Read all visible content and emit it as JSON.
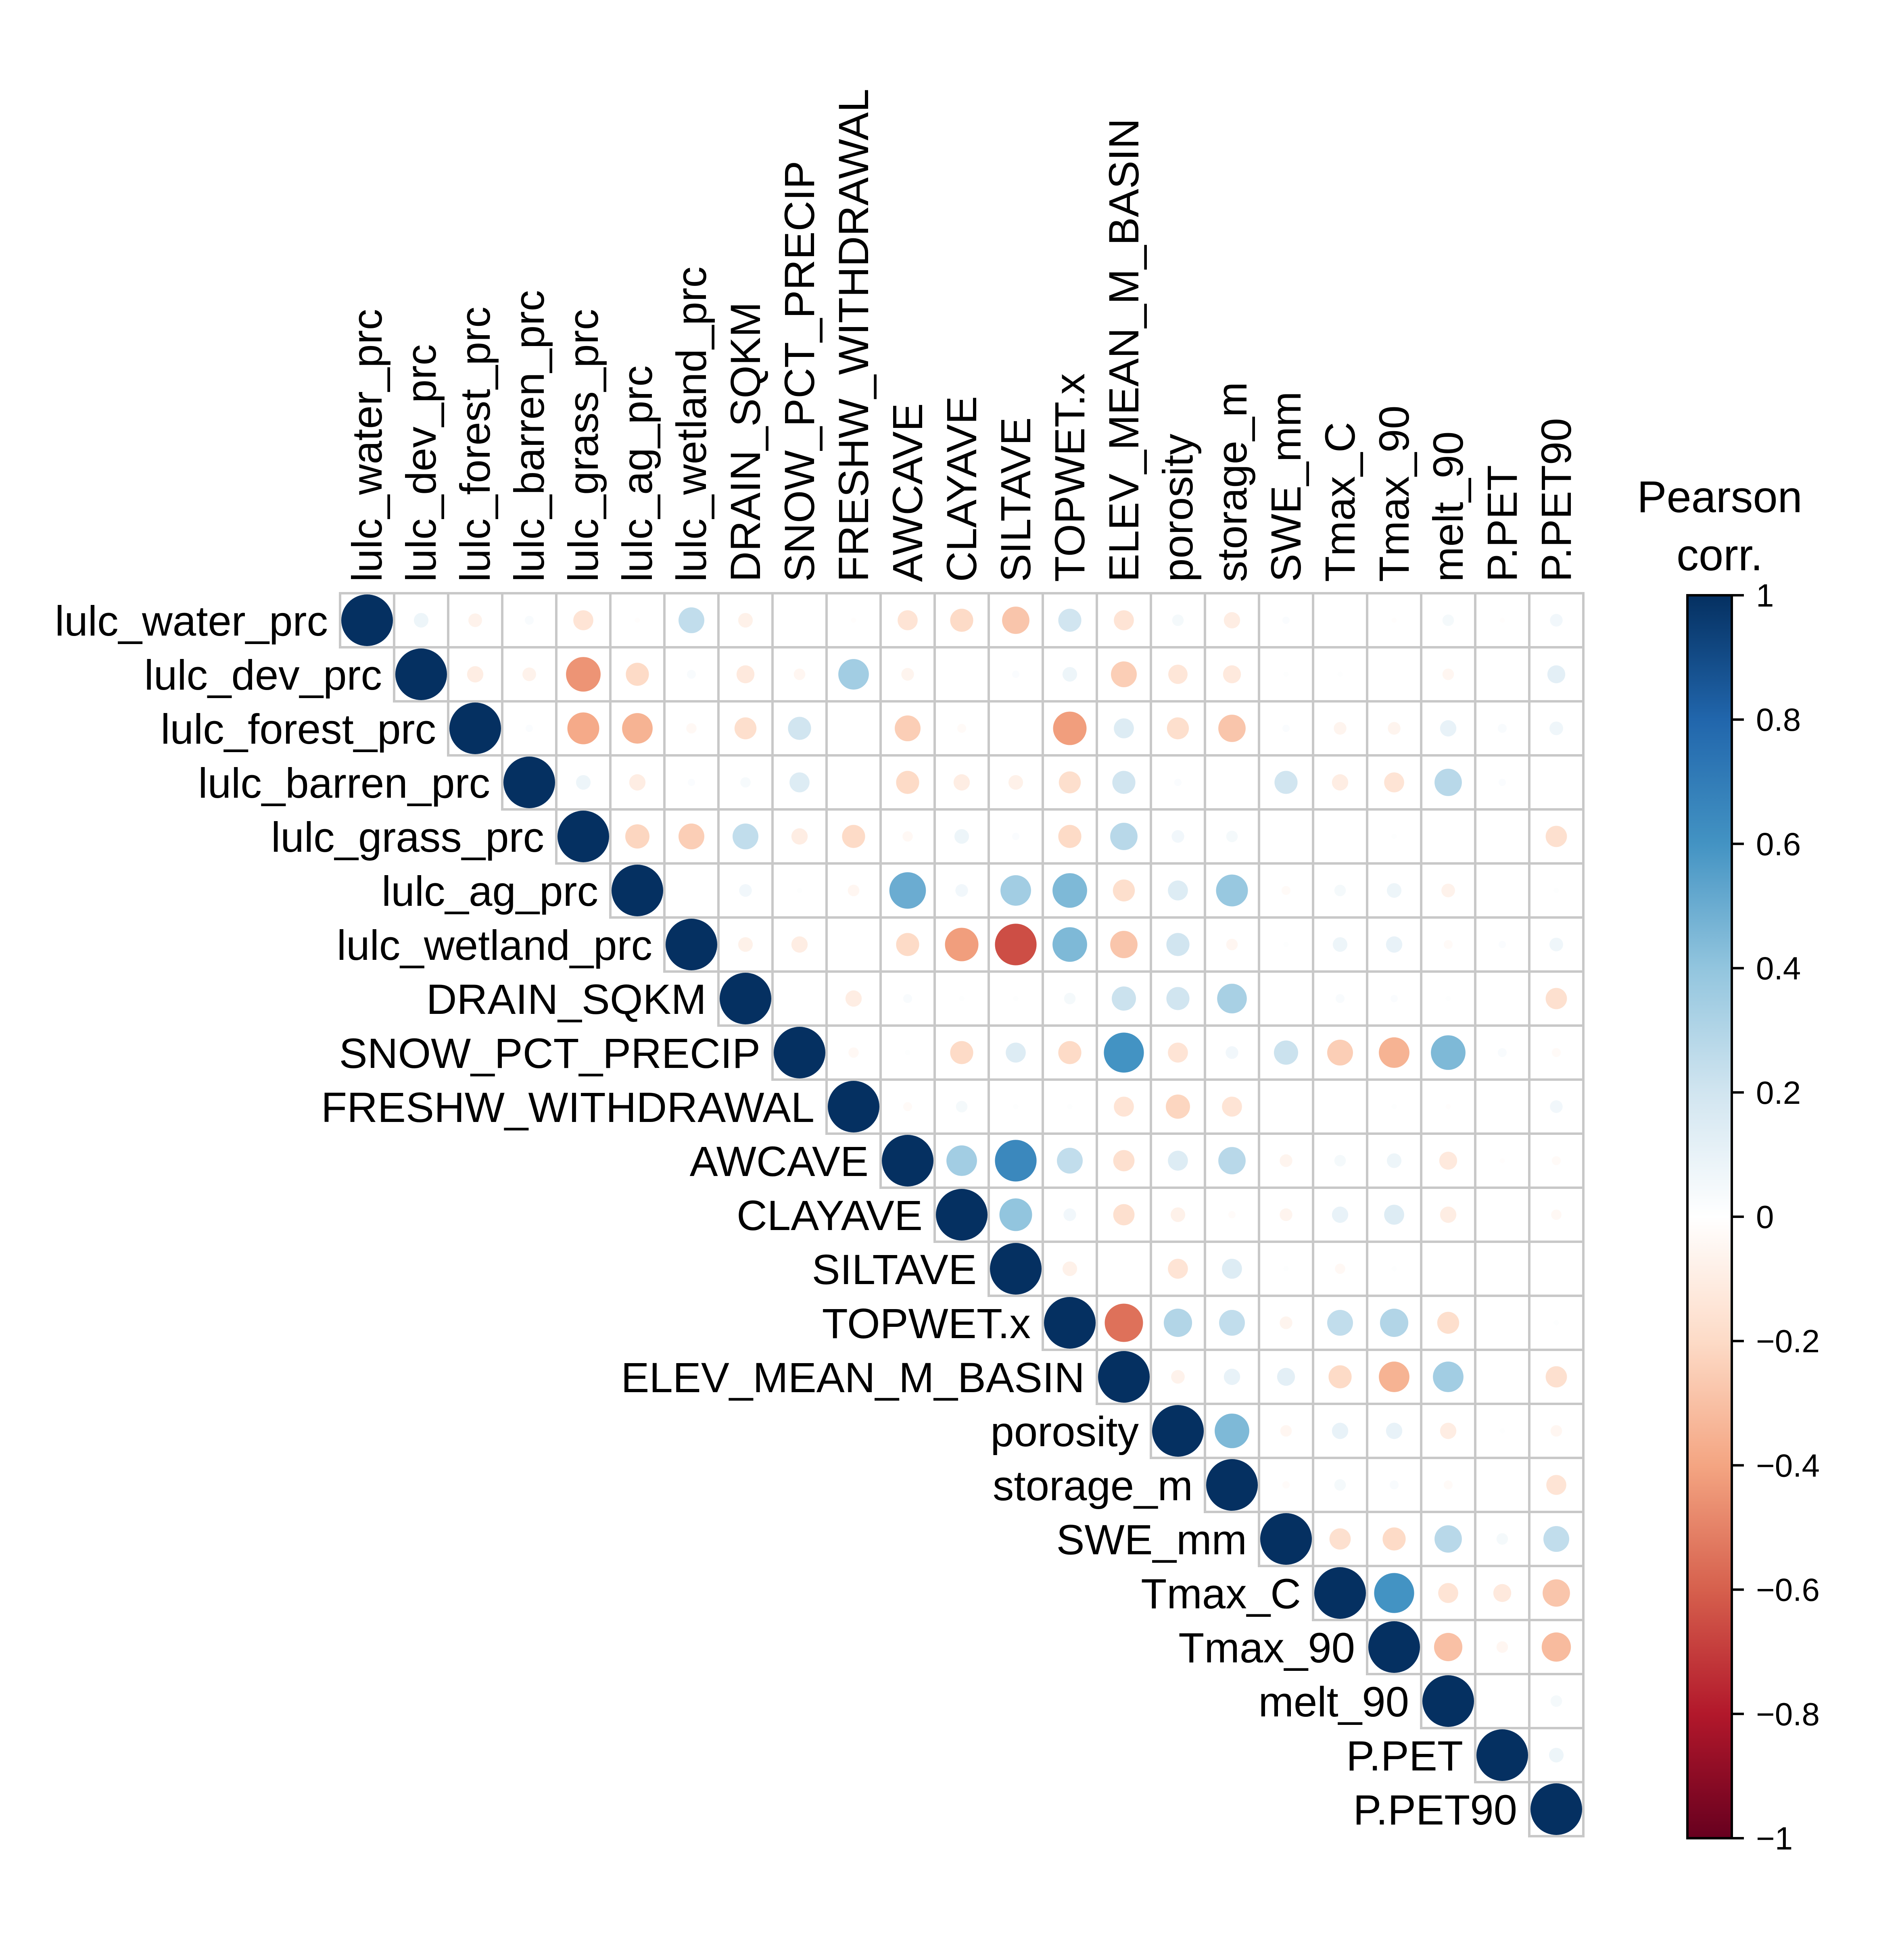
{
  "chart_data": {
    "type": "heatmap",
    "subtype": "correlation-circles-upper",
    "variables": [
      "lulc_water_prc",
      "lulc_dev_prc",
      "lulc_forest_prc",
      "lulc_barren_prc",
      "lulc_grass_prc",
      "lulc_ag_prc",
      "lulc_wetland_prc",
      "DRAIN_SQKM",
      "SNOW_PCT_PRECIP",
      "FRESHW_WITHDRAWAL",
      "AWCAVE",
      "CLAYAVE",
      "SILTAVE",
      "TOPWET.x",
      "ELEV_MEAN_M_BASIN",
      "porosity",
      "storage_m",
      "SWE_mm",
      "Tmax_C",
      "Tmax_90",
      "melt_90",
      "P.PET",
      "P.PET90"
    ],
    "matrix": [
      [
        1,
        0.08,
        -0.07,
        0.03,
        -0.15,
        -0.01,
        0.25,
        -0.08,
        0,
        -0.01,
        -0.15,
        -0.2,
        -0.28,
        0.2,
        -0.15,
        0.05,
        -0.1,
        0.02,
        0,
        -0.01,
        0.05,
        -0.01,
        0.06
      ],
      [
        null,
        1,
        -0.1,
        -0.07,
        -0.45,
        -0.2,
        0.03,
        -0.12,
        -0.05,
        0.35,
        -0.06,
        0,
        0.02,
        0.08,
        -0.25,
        -0.14,
        -0.12,
        0.01,
        0.01,
        0,
        -0.05,
        0,
        0.12
      ],
      [
        null,
        null,
        1,
        0.02,
        -0.38,
        -0.35,
        -0.04,
        -0.18,
        0.2,
        0,
        -0.25,
        -0.03,
        0,
        -0.42,
        0.15,
        -0.18,
        -0.28,
        0.02,
        -0.06,
        -0.06,
        0.1,
        0.03,
        0.07
      ],
      [
        null,
        null,
        null,
        1,
        0.08,
        -0.1,
        0.02,
        0.04,
        0.15,
        0,
        -0.2,
        -0.1,
        -0.08,
        -0.18,
        0.2,
        0.02,
        0,
        0.2,
        -0.1,
        -0.15,
        0.28,
        0.02,
        0
      ],
      [
        null,
        null,
        null,
        null,
        1,
        -0.22,
        -0.25,
        0.25,
        -0.1,
        -0.2,
        -0.04,
        0.08,
        0.02,
        -0.2,
        0.28,
        0.06,
        0.05,
        0,
        0,
        0.01,
        0,
        0,
        -0.17
      ],
      [
        null,
        null,
        null,
        null,
        null,
        1,
        0,
        0.06,
        0.01,
        -0.05,
        0.5,
        0.06,
        0.35,
        0.45,
        -0.18,
        0.15,
        0.38,
        -0.03,
        0.05,
        0.08,
        -0.07,
        0,
        0.01
      ],
      [
        null,
        null,
        null,
        null,
        null,
        null,
        1,
        -0.08,
        -0.1,
        0,
        -0.2,
        -0.42,
        -0.65,
        0.45,
        -0.28,
        0.2,
        -0.05,
        0.01,
        0.08,
        0.1,
        -0.03,
        0.02,
        0.07
      ],
      [
        null,
        null,
        null,
        null,
        null,
        null,
        null,
        1,
        0,
        -0.1,
        0.03,
        0.01,
        0.01,
        0.05,
        0.22,
        0.2,
        0.33,
        0,
        0.03,
        0.02,
        0.01,
        0,
        -0.17
      ],
      [
        null,
        null,
        null,
        null,
        null,
        null,
        null,
        null,
        1,
        -0.04,
        0.01,
        -0.2,
        0.15,
        -0.2,
        0.6,
        -0.15,
        0.06,
        0.22,
        -0.25,
        -0.35,
        0.45,
        0.03,
        -0.03
      ],
      [
        null,
        null,
        null,
        null,
        null,
        null,
        null,
        null,
        null,
        1,
        -0.03,
        0.05,
        0.01,
        0.01,
        -0.15,
        -0.22,
        -0.15,
        0,
        0,
        0.01,
        -0.01,
        0,
        0.06
      ],
      [
        null,
        null,
        null,
        null,
        null,
        null,
        null,
        null,
        null,
        null,
        1,
        0.35,
        0.65,
        0.25,
        -0.17,
        0.15,
        0.28,
        -0.06,
        0.05,
        0.08,
        -0.12,
        -0.01,
        -0.03
      ],
      [
        null,
        null,
        null,
        null,
        null,
        null,
        null,
        null,
        null,
        null,
        null,
        1,
        0.4,
        0.06,
        -0.17,
        -0.08,
        -0.02,
        -0.06,
        0.1,
        0.15,
        -0.1,
        0,
        -0.04
      ],
      [
        null,
        null,
        null,
        null,
        null,
        null,
        null,
        null,
        null,
        null,
        null,
        null,
        1,
        -0.08,
        0,
        -0.15,
        0.15,
        0.01,
        -0.04,
        0.01,
        0,
        0,
        0
      ],
      [
        null,
        null,
        null,
        null,
        null,
        null,
        null,
        null,
        null,
        null,
        null,
        null,
        null,
        1,
        -0.55,
        0.3,
        0.25,
        -0.06,
        0.25,
        0.3,
        -0.18,
        0,
        0.01
      ],
      [
        null,
        null,
        null,
        null,
        null,
        null,
        null,
        null,
        null,
        null,
        null,
        null,
        null,
        null,
        1,
        -0.07,
        0.1,
        0.12,
        -0.2,
        -0.35,
        0.35,
        0,
        -0.17
      ],
      [
        null,
        null,
        null,
        null,
        null,
        null,
        null,
        null,
        null,
        null,
        null,
        null,
        null,
        null,
        null,
        1,
        0.45,
        -0.05,
        0.1,
        0.1,
        -0.1,
        0.01,
        -0.05
      ],
      [
        null,
        null,
        null,
        null,
        null,
        null,
        null,
        null,
        null,
        null,
        null,
        null,
        null,
        null,
        null,
        null,
        1,
        -0.02,
        0.05,
        0.03,
        -0.03,
        0,
        -0.15
      ],
      [
        null,
        null,
        null,
        null,
        null,
        null,
        null,
        null,
        null,
        null,
        null,
        null,
        null,
        null,
        null,
        null,
        null,
        1,
        -0.17,
        -0.2,
        0.28,
        0.05,
        0.25
      ],
      [
        null,
        null,
        null,
        null,
        null,
        null,
        null,
        null,
        null,
        null,
        null,
        null,
        null,
        null,
        null,
        null,
        null,
        null,
        1,
        0.6,
        -0.15,
        -0.12,
        -0.28
      ],
      [
        null,
        null,
        null,
        null,
        null,
        null,
        null,
        null,
        null,
        null,
        null,
        null,
        null,
        null,
        null,
        null,
        null,
        null,
        null,
        1,
        -0.3,
        -0.05,
        -0.32
      ],
      [
        null,
        null,
        null,
        null,
        null,
        null,
        null,
        null,
        null,
        null,
        null,
        null,
        null,
        null,
        null,
        null,
        null,
        null,
        null,
        null,
        1,
        0,
        0.05
      ],
      [
        null,
        null,
        null,
        null,
        null,
        null,
        null,
        null,
        null,
        null,
        null,
        null,
        null,
        null,
        null,
        null,
        null,
        null,
        null,
        null,
        null,
        1,
        0.08
      ],
      [
        null,
        null,
        null,
        null,
        null,
        null,
        null,
        null,
        null,
        null,
        null,
        null,
        null,
        null,
        null,
        null,
        null,
        null,
        null,
        null,
        null,
        null,
        1
      ]
    ],
    "legend": {
      "title_line1": "Pearson",
      "title_line2": "corr.",
      "range": [
        -1,
        1
      ],
      "ticks": [
        "1",
        "0.8",
        "0.6",
        "0.4",
        "0.2",
        "0",
        "−0.2",
        "−0.4",
        "−0.6",
        "−0.8",
        "−1"
      ],
      "colors": [
        "#67001F",
        "#B2182B",
        "#D6604D",
        "#F4A582",
        "#FDDBC7",
        "#FFFFFF",
        "#D1E5F0",
        "#92C5DE",
        "#4393C3",
        "#2166AC",
        "#053061"
      ]
    },
    "grid": true,
    "legend_placement": "right"
  }
}
